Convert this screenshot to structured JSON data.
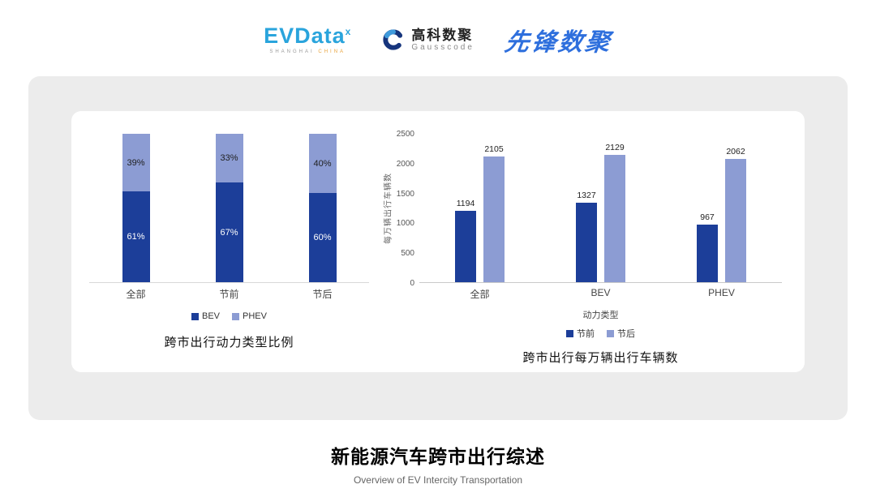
{
  "header": {
    "evdata": {
      "name": "EVData",
      "sup": "x",
      "tagline_left": "SHANGHAI",
      "tagline_right": "CHINA"
    },
    "gausscode": {
      "cn": "高科数聚",
      "en": "Gausscode"
    },
    "pioneer": {
      "text": "先锋数聚"
    }
  },
  "colors": {
    "series_dark_blue": "#1c3e99",
    "series_light_blue": "#8c9cd3",
    "panel_gray": "#ececec",
    "evdata_blue": "#2aa4dc",
    "gausscode_navy": "#16357d",
    "pioneer_blue": "#2e6fdd",
    "tagline_orange": "#e8a33d"
  },
  "chart_data": [
    {
      "type": "bar",
      "variant": "stacked-100",
      "title": "跨市出行动力类型比例",
      "categories": [
        "全部",
        "节前",
        "节后"
      ],
      "series": [
        {
          "name": "BEV",
          "values": [
            61,
            67,
            60
          ],
          "color": "#1c3e99"
        },
        {
          "name": "PHEV",
          "values": [
            39,
            33,
            40
          ],
          "color": "#8c9cd3"
        }
      ],
      "value_suffix": "%",
      "legend_position": "bottom",
      "grid": false
    },
    {
      "type": "bar",
      "variant": "grouped",
      "title": "跨市出行每万辆出行车辆数",
      "categories": [
        "全部",
        "BEV",
        "PHEV"
      ],
      "xlabel": "动力类型",
      "ylabel": "每万辆出行车辆数",
      "ylim": [
        0,
        2500
      ],
      "yticks": [
        0,
        500,
        1000,
        1500,
        2000,
        2500
      ],
      "series": [
        {
          "name": "节前",
          "values": [
            1194,
            1327,
            967
          ],
          "color": "#1c3e99"
        },
        {
          "name": "节后",
          "values": [
            2105,
            2129,
            2062
          ],
          "color": "#8c9cd3"
        }
      ],
      "legend_position": "bottom",
      "grid": false
    }
  ],
  "footer": {
    "title": "新能源汽车跨市出行综述",
    "subtitle": "Overview of EV Intercity Transportation"
  }
}
